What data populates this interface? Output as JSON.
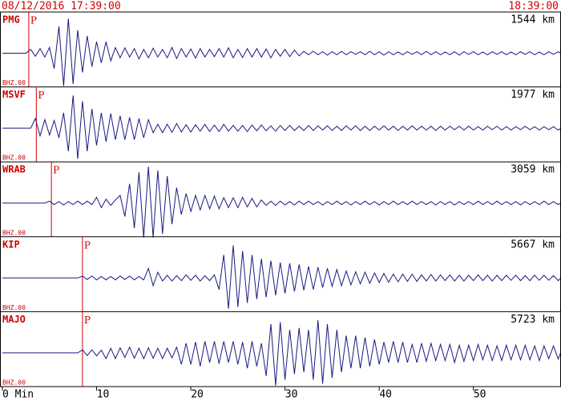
{
  "chart_data": {
    "type": "seismogram",
    "start_time": "08/12/2016 17:39:00",
    "end_time": "18:39:00",
    "xlim": [
      0,
      59.3
    ],
    "xticks": [
      {
        "value": 0,
        "label": "0 Min"
      },
      10,
      20,
      30,
      40,
      50
    ],
    "x": [
      0,
      0.5,
      1,
      1.5,
      2,
      2.5,
      3,
      3.5,
      4,
      4.5,
      5,
      5.5,
      6,
      6.5,
      7,
      7.5,
      8,
      8.5,
      9,
      9.5,
      10,
      10.5,
      11,
      11.5,
      12,
      12.5,
      13,
      13.5,
      14,
      14.5,
      15,
      15.5,
      16,
      16.5,
      17,
      17.5,
      18,
      18.5,
      19,
      19.5,
      20,
      20.5,
      21,
      21.5,
      22,
      22.5,
      23,
      23.5,
      24,
      24.5,
      25,
      25.5,
      26,
      26.5,
      27,
      27.5,
      28,
      28.5,
      29,
      29.5,
      30,
      30.5,
      31,
      31.5,
      32,
      32.5,
      33,
      33.5,
      34,
      34.5,
      35,
      35.5,
      36,
      36.5,
      37,
      37.5,
      38,
      38.5,
      39,
      39.5,
      40,
      40.5,
      41,
      41.5,
      42,
      42.5,
      43,
      43.5,
      44,
      44.5,
      45,
      45.5,
      46,
      46.5,
      47,
      47.5,
      48,
      48.5,
      49,
      49.5,
      50,
      50.5,
      51,
      51.5,
      52,
      52.5,
      53,
      53.5,
      54,
      54.5,
      55,
      55.5,
      56,
      56.5,
      57,
      57.5,
      58,
      58.5,
      59,
      59.5
    ],
    "series": [
      {
        "name": "PMG",
        "distance": "1544 km",
        "channel": "BHZ.00",
        "phase": "P",
        "p_arrival": 2.8,
        "color": "#1a1a80",
        "values": [
          0,
          0,
          0,
          0,
          0,
          0,
          0.1,
          -0.08,
          0.12,
          -0.1,
          0.15,
          -0.4,
          0.7,
          -0.85,
          0.9,
          -0.8,
          0.6,
          -0.5,
          0.45,
          -0.35,
          0.3,
          -0.25,
          0.3,
          -0.2,
          0.15,
          -0.12,
          0.14,
          -0.1,
          0.12,
          -0.15,
          0.1,
          -0.12,
          0.13,
          -0.1,
          0.1,
          -0.12,
          0.15,
          -0.14,
          0.12,
          -0.1,
          0.11,
          -0.13,
          0.12,
          -0.1,
          0.1,
          -0.09,
          0.12,
          -0.1,
          0.14,
          -0.12,
          0.1,
          -0.11,
          0.12,
          -0.1,
          0.12,
          -0.1,
          0.11,
          -0.12,
          0.1,
          -0.08,
          0.1,
          -0.09,
          0.08,
          -0.07,
          0.05,
          -0.04,
          0.05,
          -0.04,
          0.04,
          -0.05,
          0.04,
          -0.04,
          0.05,
          -0.04,
          0.04,
          -0.03,
          0.04,
          -0.04,
          0.05,
          -0.04,
          0.04,
          -0.05,
          0.04,
          -0.04,
          0.03,
          -0.04,
          0.04,
          -0.03,
          0.04,
          -0.04,
          0.05,
          -0.04,
          0.04,
          -0.04,
          0.03,
          -0.04,
          0.04,
          -0.05,
          0.04,
          -0.03,
          0.04,
          -0.04,
          0.03,
          -0.04,
          0.04,
          -0.03,
          0.04,
          -0.04,
          0.03,
          -0.04,
          0.04,
          -0.03,
          0.04,
          -0.04,
          0.03,
          -0.04,
          0.04,
          -0.03,
          0.04,
          -0.04
        ]
      },
      {
        "name": "MSVF",
        "distance": "1977 km",
        "channel": "BHZ.00",
        "phase": "P",
        "p_arrival": 3.6,
        "color": "#1a1a80",
        "values": [
          0,
          0,
          0,
          0,
          0,
          0,
          0,
          0.25,
          -0.2,
          0.22,
          -0.18,
          0.2,
          -0.25,
          0.4,
          -0.6,
          0.85,
          -0.8,
          0.7,
          -0.6,
          0.5,
          -0.45,
          0.4,
          -0.35,
          0.38,
          -0.3,
          0.32,
          -0.3,
          0.28,
          -0.3,
          0.25,
          -0.25,
          0.22,
          -0.12,
          0.1,
          -0.12,
          0.1,
          -0.11,
          0.12,
          -0.1,
          0.09,
          -0.1,
          0.09,
          -0.08,
          0.1,
          -0.09,
          0.08,
          -0.09,
          0.1,
          -0.08,
          0.07,
          -0.08,
          0.07,
          -0.09,
          0.08,
          -0.07,
          0.08,
          -0.07,
          0.06,
          -0.08,
          0.07,
          -0.06,
          0.07,
          -0.06,
          0.05,
          -0.06,
          0.07,
          -0.06,
          0.06,
          -0.05,
          0.06,
          -0.06,
          0.05,
          -0.06,
          0.06,
          -0.05,
          0.06,
          -0.06,
          0.05,
          -0.06,
          0.05,
          -0.05,
          0.06,
          -0.05,
          0.05,
          -0.06,
          0.05,
          -0.05,
          0.06,
          -0.05,
          0.05,
          -0.05,
          0.05,
          -0.06,
          0.05,
          -0.05,
          0.05,
          -0.04,
          0.05,
          -0.05,
          0.05,
          -0.05,
          0.04,
          -0.05,
          0.05,
          -0.04,
          0.05,
          -0.05,
          0.04,
          -0.05,
          0.04,
          -0.04,
          0.05,
          -0.04,
          0.04,
          -0.05,
          0.04,
          -0.04,
          0.04,
          -0.05,
          0.04
        ]
      },
      {
        "name": "WRAB",
        "distance": "3059 km",
        "channel": "BHZ.00",
        "phase": "P",
        "p_arrival": 5.2,
        "color": "#1a1a80",
        "values": [
          0,
          0,
          0,
          0,
          0,
          0,
          0,
          0,
          0,
          0,
          0.05,
          -0.04,
          0.04,
          -0.05,
          0.04,
          -0.04,
          0.05,
          -0.04,
          0.05,
          -0.04,
          0.15,
          -0.12,
          0.1,
          -0.06,
          0.08,
          0.2,
          -0.35,
          0.5,
          -0.65,
          0.8,
          -0.9,
          0.95,
          -0.9,
          0.85,
          -0.8,
          0.7,
          -0.55,
          0.4,
          -0.3,
          0.25,
          -0.22,
          0.2,
          -0.18,
          0.2,
          -0.15,
          0.18,
          -0.15,
          0.14,
          -0.12,
          0.14,
          -0.12,
          0.15,
          -0.1,
          0.12,
          -0.1,
          0.08,
          -0.06,
          0.05,
          -0.06,
          0.05,
          -0.05,
          0.04,
          -0.05,
          0.05,
          -0.04,
          0.05,
          -0.04,
          0.04,
          -0.05,
          0.04,
          -0.04,
          0.05,
          -0.04,
          0.04,
          -0.05,
          0.04,
          -0.04,
          0.05,
          -0.04,
          0.04,
          -0.05,
          0.04,
          -0.04,
          0.05,
          -0.04,
          0.04,
          -0.04,
          0.05,
          -0.04,
          0.04,
          -0.04,
          0.04,
          -0.05,
          0.04,
          -0.04,
          0.04,
          -0.05,
          0.04,
          -0.04,
          0.04,
          -0.04,
          0.05,
          -0.04,
          0.04,
          -0.04,
          0.05,
          -0.04,
          0.04,
          -0.04,
          0.04,
          -0.05,
          0.04,
          -0.04,
          0.04,
          -0.04,
          0.05,
          -0.04,
          0.04,
          -0.04,
          0.04
        ]
      },
      {
        "name": "KIP",
        "distance": "5667 km",
        "channel": "BHZ.00",
        "phase": "P",
        "p_arrival": 8.5,
        "color": "#1a1a80",
        "values": [
          0,
          0,
          0,
          0,
          0,
          0,
          0,
          0,
          0,
          0,
          0,
          0,
          0,
          0,
          0,
          0,
          0,
          0.05,
          -0.04,
          0.05,
          -0.05,
          0.04,
          -0.05,
          0.04,
          -0.05,
          0.05,
          -0.04,
          0.05,
          -0.05,
          0.04,
          -0.05,
          0.25,
          -0.2,
          0.15,
          -0.08,
          0.07,
          -0.08,
          0.06,
          -0.07,
          0.08,
          -0.06,
          0.07,
          -0.08,
          0.06,
          -0.07,
          0.08,
          -0.3,
          0.6,
          -0.8,
          0.85,
          -0.75,
          0.7,
          -0.65,
          0.6,
          -0.55,
          0.5,
          -0.5,
          0.45,
          -0.45,
          0.4,
          -0.4,
          0.38,
          -0.35,
          0.35,
          -0.32,
          0.3,
          -0.3,
          0.28,
          -0.25,
          0.25,
          -0.22,
          0.22,
          -0.2,
          0.18,
          -0.18,
          0.16,
          -0.15,
          0.15,
          -0.14,
          0.13,
          -0.12,
          0.12,
          -0.11,
          0.1,
          -0.1,
          0.1,
          -0.09,
          0.1,
          -0.09,
          0.08,
          -0.08,
          0.09,
          -0.08,
          0.08,
          -0.07,
          0.08,
          -0.08,
          0.07,
          -0.08,
          0.07,
          -0.07,
          0.08,
          -0.07,
          0.07,
          -0.08,
          0.07,
          -0.07,
          0.07,
          -0.06,
          0.07,
          -0.07,
          0.06,
          -0.07,
          0.07,
          -0.06,
          0.07,
          -0.06,
          0.06,
          -0.07,
          0.06
        ]
      },
      {
        "name": "MAJO",
        "distance": "5723 km",
        "channel": "BHZ.00",
        "phase": "P",
        "p_arrival": 8.5,
        "color": "#1a1a80",
        "values": [
          0,
          0,
          0,
          0,
          0,
          0,
          0,
          0,
          0,
          0,
          0,
          0,
          0,
          0,
          0,
          0,
          0,
          0.08,
          -0.07,
          0.08,
          -0.08,
          0.07,
          -0.15,
          0.12,
          -0.15,
          0.13,
          -0.12,
          0.15,
          -0.14,
          0.12,
          -0.15,
          0.13,
          -0.14,
          0.12,
          -0.15,
          0.12,
          -0.13,
          0.15,
          -0.3,
          0.25,
          -0.3,
          0.28,
          -0.35,
          0.3,
          -0.25,
          0.3,
          -0.28,
          0.3,
          -0.25,
          0.3,
          -0.3,
          0.28,
          -0.4,
          0.3,
          -0.35,
          0.25,
          -0.6,
          0.75,
          -0.85,
          0.8,
          -0.7,
          0.6,
          -0.55,
          0.65,
          -0.5,
          0.6,
          -0.7,
          0.85,
          -0.8,
          0.75,
          -0.65,
          0.6,
          -0.5,
          0.45,
          -0.4,
          0.45,
          -0.4,
          0.4,
          -0.35,
          0.35,
          -0.3,
          0.28,
          -0.25,
          0.3,
          -0.25,
          0.28,
          -0.25,
          0.22,
          -0.25,
          0.25,
          -0.22,
          0.25,
          -0.2,
          0.22,
          -0.2,
          0.22,
          -0.25,
          0.2,
          -0.22,
          0.2,
          -0.2,
          0.22,
          -0.18,
          0.2,
          -0.2,
          0.18,
          -0.2,
          0.2,
          -0.18,
          0.2,
          -0.18,
          0.2,
          -0.18,
          0.18,
          -0.2,
          0.18,
          -0.15,
          0.18,
          -0.16,
          0.15
        ]
      }
    ]
  }
}
